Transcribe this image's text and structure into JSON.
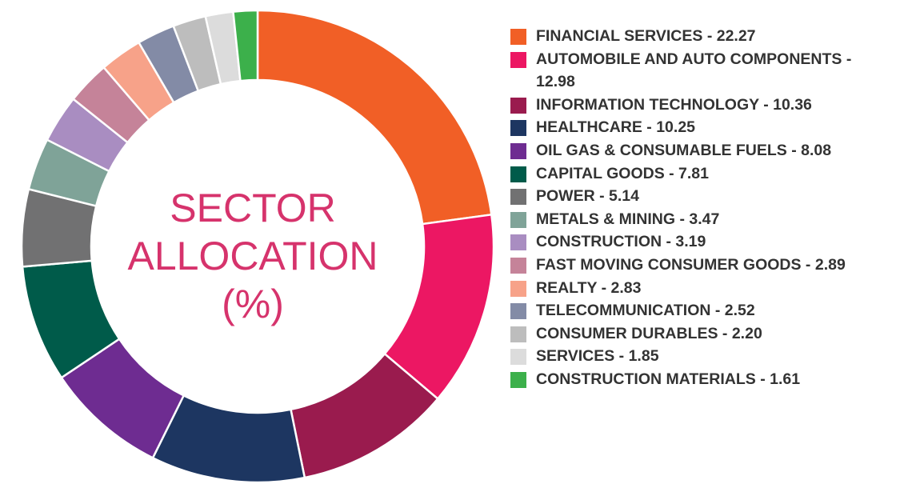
{
  "chart_data": {
    "type": "pie",
    "title_lines": [
      "SECTOR",
      "ALLOCATION",
      "(%)"
    ],
    "categories": [
      "FINANCIAL SERVICES",
      "AUTOMOBILE AND AUTO COMPONENTS",
      "INFORMATION TECHNOLOGY",
      "HEALTHCARE",
      "OIL GAS & CONSUMABLE FUELS",
      "CAPITAL GOODS",
      "POWER",
      "METALS & MINING",
      "CONSTRUCTION",
      "FAST MOVING CONSUMER GOODS",
      "REALTY",
      "TELECOMMUNICATION",
      "CONSUMER DURABLES",
      "SERVICES",
      "CONSTRUCTION MATERIALS"
    ],
    "value_labels": [
      "22.27",
      "12.98",
      "10.36",
      "10.25",
      "8.08",
      "7.81",
      "5.14",
      "3.47",
      "3.19",
      "2.89",
      "2.83",
      "2.52",
      "2.20",
      "1.85",
      "1.61"
    ],
    "values": [
      22.27,
      12.98,
      10.36,
      10.25,
      8.08,
      7.81,
      5.14,
      3.47,
      3.19,
      2.89,
      2.83,
      2.52,
      2.2,
      1.85,
      1.61
    ],
    "colors": [
      "#f15f26",
      "#ec1763",
      "#9a1b4e",
      "#1d3661",
      "#6e2c91",
      "#005b4a",
      "#717172",
      "#7fa398",
      "#a98dc1",
      "#c58399",
      "#f7a289",
      "#838ba6",
      "#bdbdbd",
      "#dcdcdc",
      "#3cb04b"
    ],
    "legend_position": "right",
    "grid": false
  }
}
